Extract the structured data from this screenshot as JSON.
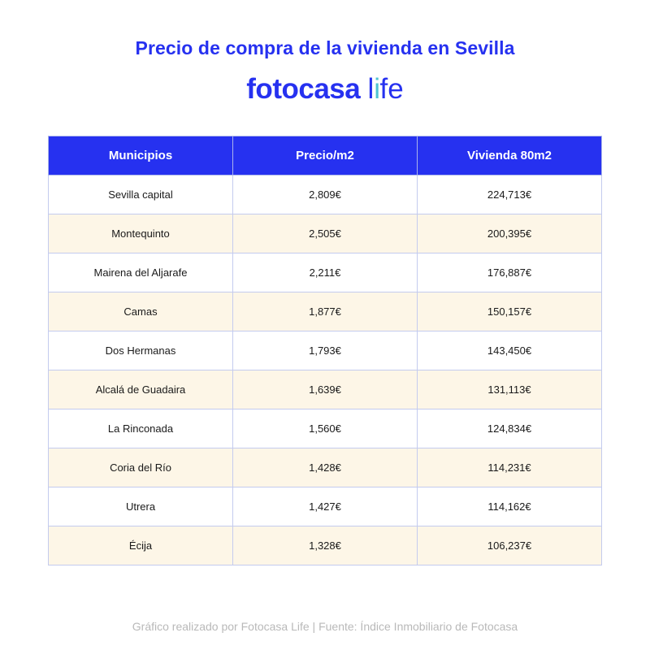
{
  "title": "Precio de compra de la vivienda en Sevilla",
  "logo": {
    "part1": "fotocasa ",
    "part2_l": "l",
    "part2_i": "i",
    "part2_fe": "fe"
  },
  "colors": {
    "brand": "#2631f0",
    "accent": "#4ec3d2",
    "row_alt": "#fdf6e7"
  },
  "chart_data": {
    "type": "table",
    "columns": [
      "Municipios",
      "Precio/m2",
      "Vivienda 80m2"
    ],
    "rows": [
      [
        "Sevilla capital",
        "2,809€",
        "224,713€"
      ],
      [
        "Montequinto",
        "2,505€",
        "200,395€"
      ],
      [
        "Mairena del Aljarafe",
        "2,211€",
        "176,887€"
      ],
      [
        "Camas",
        "1,877€",
        "150,157€"
      ],
      [
        "Dos Hermanas",
        "1,793€",
        "143,450€"
      ],
      [
        "Alcalá de Guadaira",
        "1,639€",
        "131,113€"
      ],
      [
        "La Rinconada",
        "1,560€",
        "124,834€"
      ],
      [
        "Coria del Río",
        "1,428€",
        "114,231€"
      ],
      [
        "Utrera",
        "1,427€",
        "114,162€"
      ],
      [
        "Écija",
        "1,328€",
        "106,237€"
      ]
    ]
  },
  "footer": "Gráfico realizado por Fotocasa Life | Fuente: Índice Inmobiliario de Fotocasa"
}
